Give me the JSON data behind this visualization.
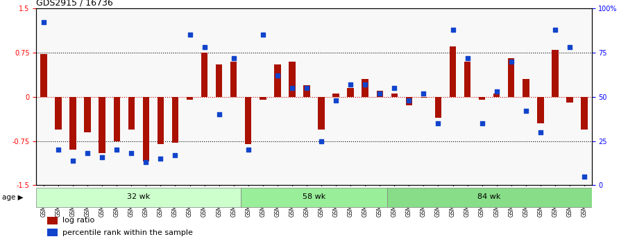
{
  "title": "GDS2915 / 16736",
  "samples": [
    "GSM97277",
    "GSM97278",
    "GSM97279",
    "GSM97280",
    "GSM97281",
    "GSM97282",
    "GSM97283",
    "GSM97284",
    "GSM97285",
    "GSM97286",
    "GSM97287",
    "GSM97288",
    "GSM97289",
    "GSM97290",
    "GSM97291",
    "GSM97292",
    "GSM97293",
    "GSM97294",
    "GSM97295",
    "GSM97296",
    "GSM97297",
    "GSM97298",
    "GSM97299",
    "GSM97300",
    "GSM97301",
    "GSM97302",
    "GSM97303",
    "GSM97304",
    "GSM97305",
    "GSM97306",
    "GSM97307",
    "GSM97308",
    "GSM97309",
    "GSM97310",
    "GSM97311",
    "GSM97312",
    "GSM97313",
    "GSM97314"
  ],
  "log_ratio": [
    0.72,
    -0.55,
    -0.9,
    -0.6,
    -0.95,
    -0.75,
    -0.55,
    -1.1,
    -0.8,
    -0.78,
    -0.05,
    0.75,
    0.55,
    0.6,
    -0.8,
    -0.05,
    0.55,
    0.6,
    0.2,
    -0.55,
    0.05,
    0.15,
    0.3,
    0.1,
    0.05,
    -0.15,
    -0.02,
    -0.35,
    0.85,
    0.6,
    -0.05,
    0.05,
    0.65,
    0.3,
    -0.45,
    0.8,
    -0.1,
    -0.55
  ],
  "percentile": [
    92,
    20,
    14,
    18,
    16,
    20,
    18,
    13,
    15,
    17,
    85,
    78,
    40,
    72,
    20,
    85,
    62,
    55,
    55,
    25,
    48,
    57,
    57,
    52,
    55,
    48,
    52,
    35,
    88,
    72,
    35,
    53,
    70,
    42,
    30,
    88,
    78,
    5
  ],
  "groups": [
    {
      "label": "32 wk",
      "start": 0,
      "end": 14,
      "color": "#ccffcc"
    },
    {
      "label": "58 wk",
      "start": 14,
      "end": 24,
      "color": "#99ee99"
    },
    {
      "label": "84 wk",
      "start": 24,
      "end": 38,
      "color": "#88dd88"
    }
  ],
  "bar_color": "#aa1100",
  "dot_color": "#1144cc",
  "ylim": [
    -1.5,
    1.5
  ],
  "yticks_left": [
    -1.5,
    -0.75,
    0.0,
    0.75,
    1.5
  ],
  "yticks_right": [
    0,
    25,
    50,
    75,
    100
  ],
  "ytick_labels_right": [
    "0",
    "25",
    "50",
    "75",
    "100%"
  ],
  "hline_color": "#cc0000",
  "dotline_color": "#000000",
  "age_label": "age",
  "legend_log_ratio": "log ratio",
  "legend_percentile": "percentile rank within the sample"
}
